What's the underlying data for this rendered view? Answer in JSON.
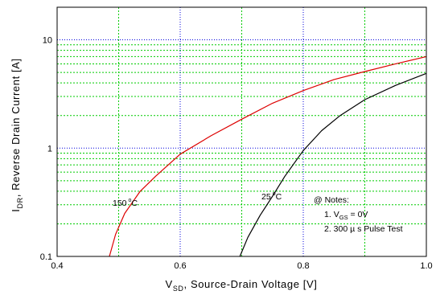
{
  "chart_data": {
    "type": "line",
    "title": "",
    "xlabel": "V_SD, Source-Drain Voltage [V]",
    "xlabel_parts": {
      "main": "V",
      "sub": "SD",
      "rest": ", Source-Drain Voltage [V]"
    },
    "ylabel": "I_DR, Reverse Drain Current [A]",
    "ylabel_parts": {
      "main": "I",
      "sub": "DR",
      "rest": ", Reverse Drain Current [A]"
    },
    "xlim": [
      0.4,
      1.0
    ],
    "ylim": [
      0.1,
      20
    ],
    "yscale": "log",
    "grid": true,
    "x_ticks": [
      0.4,
      0.6,
      0.8,
      1.0
    ],
    "x_tick_labels": [
      "0.4",
      "0.6",
      "0.8",
      "1.0"
    ],
    "y_ticks": [
      0.1,
      1,
      10
    ],
    "y_tick_labels": [
      "0.1",
      "1",
      "10"
    ],
    "series": [
      {
        "name": "150 °C",
        "label_parts": {
          "value": "150",
          "unit": "C"
        },
        "color": "#dd0000",
        "x": [
          0.485,
          0.495,
          0.51,
          0.535,
          0.56,
          0.6,
          0.65,
          0.7,
          0.75,
          0.8,
          0.85,
          0.9,
          0.95,
          1.0
        ],
        "y": [
          0.1,
          0.16,
          0.25,
          0.4,
          0.55,
          0.88,
          1.3,
          1.85,
          2.6,
          3.4,
          4.3,
          5.1,
          6.0,
          7.0
        ]
      },
      {
        "name": "25 °C",
        "label_parts": {
          "value": "25",
          "unit": "C"
        },
        "color": "#000000",
        "x": [
          0.697,
          0.71,
          0.73,
          0.75,
          0.77,
          0.8,
          0.83,
          0.86,
          0.9,
          0.95,
          1.0
        ],
        "y": [
          0.1,
          0.15,
          0.24,
          0.36,
          0.55,
          0.95,
          1.45,
          2.0,
          2.8,
          3.8,
          4.9
        ]
      }
    ],
    "notes": {
      "heading": "@ Notes:",
      "line1_num": "1.",
      "line1_main": "V",
      "line1_sub": "GS",
      "line1_rest": " = 0V",
      "line2": "2. 300 µ s Pulse Test"
    },
    "colors": {
      "major_grid": "#0000dd",
      "minor_grid": "#00cc00"
    }
  }
}
